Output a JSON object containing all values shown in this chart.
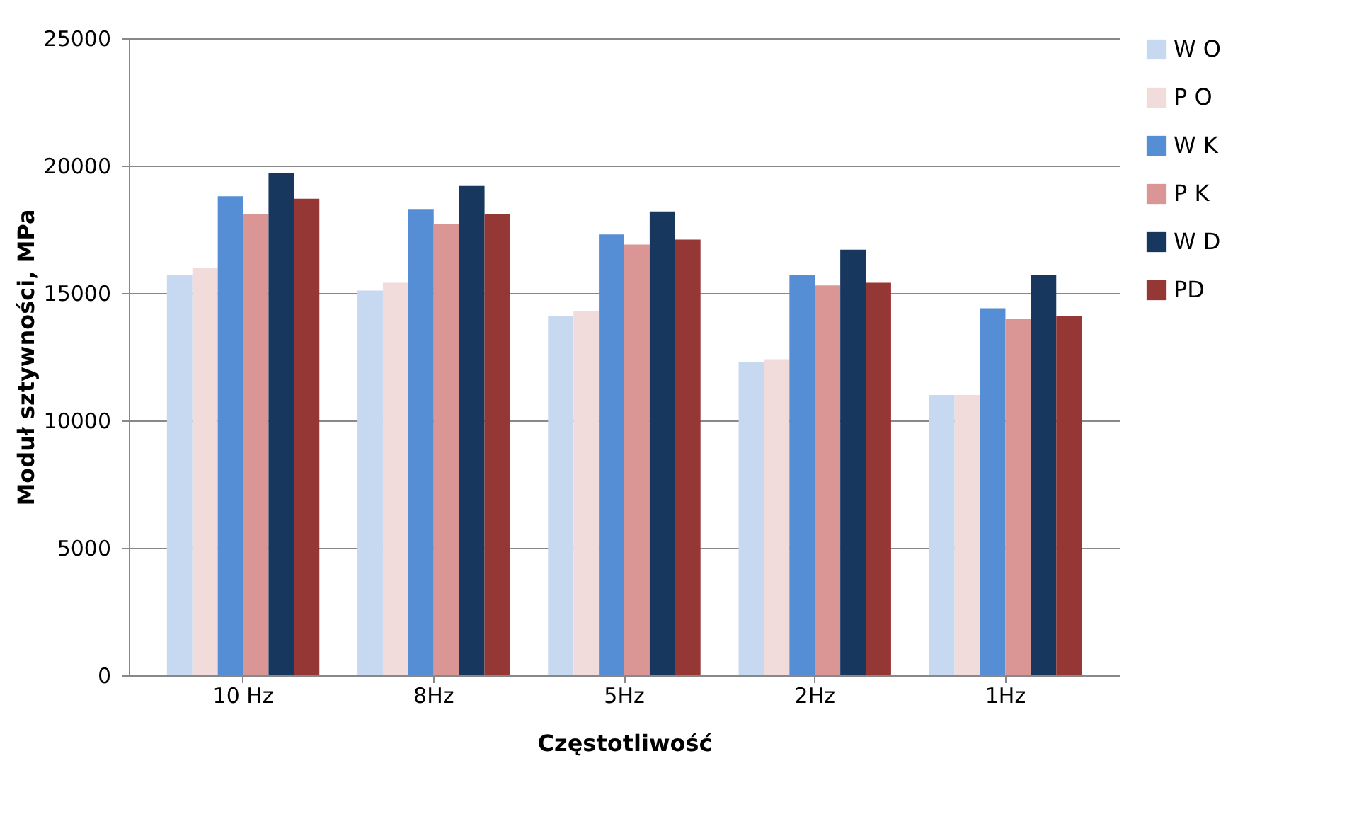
{
  "chart_data": {
    "type": "bar",
    "xlabel": "Częstotliwość",
    "ylabel": "Moduł sztywności, MPa",
    "categories": [
      "10 Hz",
      "8Hz",
      "5Hz",
      "2Hz",
      "1Hz"
    ],
    "series": [
      {
        "name": "W O",
        "color": "#c6d9f0",
        "values": [
          15700,
          15100,
          14100,
          12300,
          11000
        ]
      },
      {
        "name": "P O",
        "color": "#f2dcdb",
        "values": [
          16000,
          15400,
          14300,
          12400,
          11000
        ]
      },
      {
        "name": "W K",
        "color": "#558ed5",
        "values": [
          18800,
          18300,
          17300,
          15700,
          14400
        ]
      },
      {
        "name": "P K",
        "color": "#d99694",
        "values": [
          18100,
          17700,
          16900,
          15300,
          14000
        ]
      },
      {
        "name": "W D",
        "color": "#17375e",
        "values": [
          19700,
          19200,
          18200,
          16700,
          15700
        ]
      },
      {
        "name": "PD",
        "color": "#953735",
        "values": [
          18700,
          18100,
          17100,
          15400,
          14100
        ]
      }
    ],
    "ylim": [
      0,
      25000
    ],
    "yticks": [
      0,
      5000,
      10000,
      15000,
      20000,
      25000
    ],
    "grid": "y",
    "legend": "right"
  }
}
